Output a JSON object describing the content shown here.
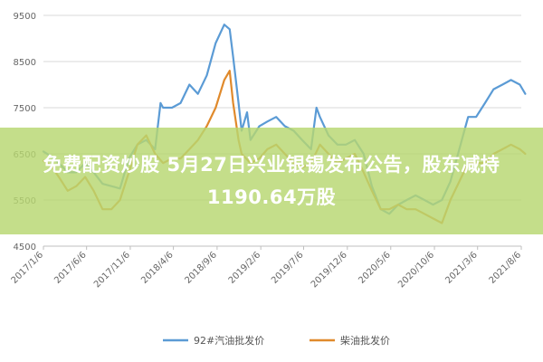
{
  "chart_data": {
    "type": "line",
    "title": "",
    "xlabel": "",
    "ylabel": "",
    "ylim": [
      4500,
      9500
    ],
    "yticks": [
      4500,
      5500,
      6500,
      7500,
      8500,
      9500
    ],
    "xticks": [
      "2017/1/6",
      "2017/6/6",
      "2017/11/6",
      "2018/4/6",
      "2018/9/6",
      "2019/2/6",
      "2019/7/6",
      "2019/12/6",
      "2020/5/6",
      "2020/10/6",
      "2021/3/6",
      "2021/8/6"
    ],
    "grid": true,
    "legend_position": "bottom",
    "series": [
      {
        "name": "92#汽油批发价",
        "color": "#5b9bd5",
        "points": [
          [
            "2017/1/6",
            6550
          ],
          [
            "2017/2/1",
            6450
          ],
          [
            "2017/3/1",
            6300
          ],
          [
            "2017/4/1",
            6100
          ],
          [
            "2017/5/1",
            6100
          ],
          [
            "2017/6/1",
            6300
          ],
          [
            "2017/7/1",
            6100
          ],
          [
            "2017/8/1",
            5850
          ],
          [
            "2017/9/1",
            5800
          ],
          [
            "2017/10/1",
            5750
          ],
          [
            "2017/11/1",
            6400
          ],
          [
            "2017/12/1",
            6700
          ],
          [
            "2018/1/1",
            6800
          ],
          [
            "2018/2/1",
            6600
          ],
          [
            "2018/2/20",
            7600
          ],
          [
            "2018/3/1",
            7500
          ],
          [
            "2018/4/1",
            7500
          ],
          [
            "2018/5/1",
            7600
          ],
          [
            "2018/6/1",
            8000
          ],
          [
            "2018/7/1",
            7800
          ],
          [
            "2018/8/1",
            8200
          ],
          [
            "2018/9/1",
            8900
          ],
          [
            "2018/10/1",
            9300
          ],
          [
            "2018/10/20",
            9200
          ],
          [
            "2018/11/1",
            8600
          ],
          [
            "2018/11/20",
            7600
          ],
          [
            "2018/12/1",
            7000
          ],
          [
            "2018/12/20",
            7400
          ],
          [
            "2019/1/1",
            6800
          ],
          [
            "2019/2/1",
            7100
          ],
          [
            "2019/3/1",
            7200
          ],
          [
            "2019/4/1",
            7300
          ],
          [
            "2019/5/1",
            7100
          ],
          [
            "2019/6/1",
            7000
          ],
          [
            "2019/7/1",
            6800
          ],
          [
            "2019/8/1",
            6600
          ],
          [
            "2019/8/20",
            7500
          ],
          [
            "2019/9/1",
            7300
          ],
          [
            "2019/10/1",
            6900
          ],
          [
            "2019/11/1",
            6700
          ],
          [
            "2019/12/1",
            6700
          ],
          [
            "2020/1/1",
            6800
          ],
          [
            "2020/2/1",
            6500
          ],
          [
            "2020/3/1",
            5800
          ],
          [
            "2020/4/1",
            5300
          ],
          [
            "2020/5/1",
            5200
          ],
          [
            "2020/6/1",
            5400
          ],
          [
            "2020/7/1",
            5500
          ],
          [
            "2020/8/1",
            5600
          ],
          [
            "2020/9/1",
            5500
          ],
          [
            "2020/10/1",
            5400
          ],
          [
            "2020/11/1",
            5500
          ],
          [
            "2020/12/1",
            5900
          ],
          [
            "2021/1/1",
            6600
          ],
          [
            "2021/2/1",
            7300
          ],
          [
            "2021/3/1",
            7300
          ],
          [
            "2021/4/1",
            7600
          ],
          [
            "2021/5/1",
            7900
          ],
          [
            "2021/6/1",
            8000
          ],
          [
            "2021/7/1",
            8100
          ],
          [
            "2021/8/1",
            8000
          ],
          [
            "2021/8/20",
            7800
          ]
        ]
      },
      {
        "name": "柴油批发价",
        "color": "#e08a2c",
        "points": [
          [
            "2017/1/6",
            6350
          ],
          [
            "2017/2/1",
            6250
          ],
          [
            "2017/3/1",
            6000
          ],
          [
            "2017/4/1",
            5700
          ],
          [
            "2017/5/1",
            5800
          ],
          [
            "2017/6/1",
            6000
          ],
          [
            "2017/7/1",
            5700
          ],
          [
            "2017/8/1",
            5300
          ],
          [
            "2017/9/1",
            5300
          ],
          [
            "2017/10/1",
            5500
          ],
          [
            "2017/11/1",
            6100
          ],
          [
            "2017/12/1",
            6700
          ],
          [
            "2018/1/1",
            6900
          ],
          [
            "2018/2/1",
            6500
          ],
          [
            "2018/3/1",
            6300
          ],
          [
            "2018/4/1",
            6400
          ],
          [
            "2018/5/1",
            6400
          ],
          [
            "2018/6/1",
            6600
          ],
          [
            "2018/7/1",
            6800
          ],
          [
            "2018/8/1",
            7100
          ],
          [
            "2018/9/1",
            7500
          ],
          [
            "2018/10/1",
            8100
          ],
          [
            "2018/10/20",
            8300
          ],
          [
            "2018/11/1",
            7600
          ],
          [
            "2018/11/20",
            6800
          ],
          [
            "2018/12/1",
            6500
          ],
          [
            "2019/1/1",
            6300
          ],
          [
            "2019/2/1",
            6400
          ],
          [
            "2019/3/1",
            6600
          ],
          [
            "2019/4/1",
            6700
          ],
          [
            "2019/5/1",
            6500
          ],
          [
            "2019/6/1",
            6300
          ],
          [
            "2019/7/1",
            6200
          ],
          [
            "2019/8/1",
            6300
          ],
          [
            "2019/9/1",
            6700
          ],
          [
            "2019/10/1",
            6500
          ],
          [
            "2019/11/1",
            6300
          ],
          [
            "2019/12/1",
            6400
          ],
          [
            "2020/1/1",
            6500
          ],
          [
            "2020/2/1",
            6100
          ],
          [
            "2020/3/1",
            5700
          ],
          [
            "2020/4/1",
            5300
          ],
          [
            "2020/5/1",
            5300
          ],
          [
            "2020/6/1",
            5400
          ],
          [
            "2020/7/1",
            5300
          ],
          [
            "2020/8/1",
            5300
          ],
          [
            "2020/9/1",
            5200
          ],
          [
            "2020/10/1",
            5100
          ],
          [
            "2020/11/1",
            5000
          ],
          [
            "2020/12/1",
            5500
          ],
          [
            "2021/1/1",
            5900
          ],
          [
            "2021/2/1",
            6300
          ],
          [
            "2021/3/1",
            6300
          ],
          [
            "2021/4/1",
            6300
          ],
          [
            "2021/5/1",
            6500
          ],
          [
            "2021/6/1",
            6600
          ],
          [
            "2021/7/1",
            6700
          ],
          [
            "2021/8/1",
            6600
          ],
          [
            "2021/8/20",
            6500
          ]
        ]
      }
    ]
  },
  "banner": {
    "line1": "免费配资炒股 5月27日兴业银锡发布公告，股东减持",
    "line2": "1190.64万股"
  }
}
